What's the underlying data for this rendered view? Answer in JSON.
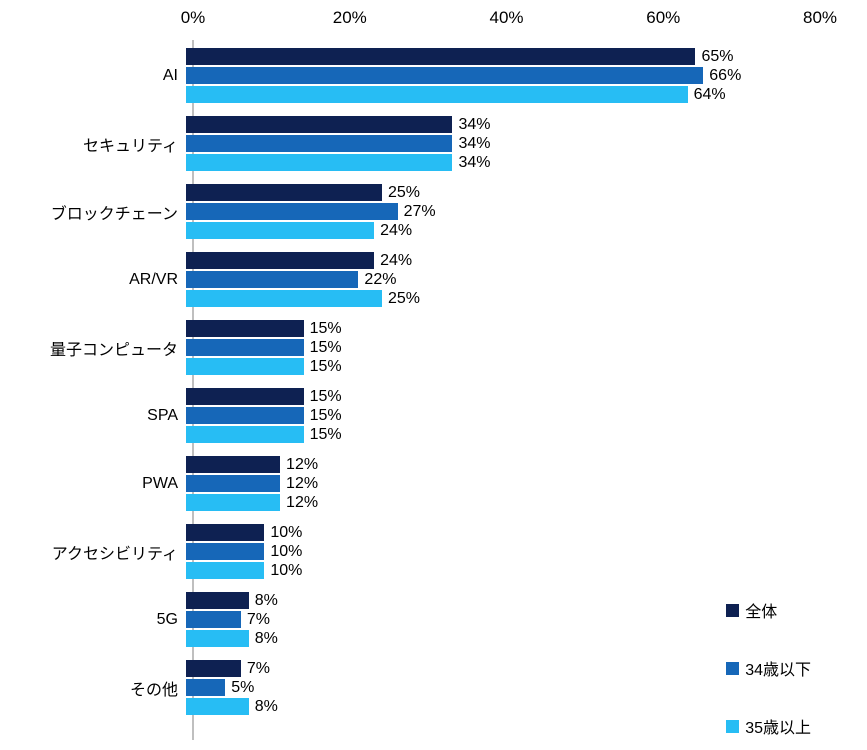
{
  "chart_data": {
    "type": "bar",
    "orientation": "horizontal",
    "title": "",
    "xlabel": "",
    "ylabel": "",
    "xlim": [
      0,
      80
    ],
    "x_ticks": [
      "0%",
      "20%",
      "40%",
      "60%",
      "80%"
    ],
    "grid": false,
    "legend_position": "bottom-right",
    "value_suffix": "%",
    "categories": [
      "AI",
      "セキュリティ",
      "ブロックチェーン",
      "AR/VR",
      "量子コンピュータ",
      "SPA",
      "PWA",
      "アクセシビリティ",
      "5G",
      "その他"
    ],
    "series": [
      {
        "name": "全体",
        "color": "#0e2152",
        "values": [
          65,
          34,
          25,
          24,
          15,
          15,
          12,
          10,
          8,
          7
        ]
      },
      {
        "name": "34歳以下",
        "color": "#1667b8",
        "values": [
          66,
          34,
          27,
          22,
          15,
          15,
          12,
          10,
          7,
          5
        ]
      },
      {
        "name": "35歳以上",
        "color": "#27bdf4",
        "values": [
          64,
          34,
          24,
          25,
          15,
          15,
          12,
          10,
          8,
          8
        ]
      }
    ]
  }
}
